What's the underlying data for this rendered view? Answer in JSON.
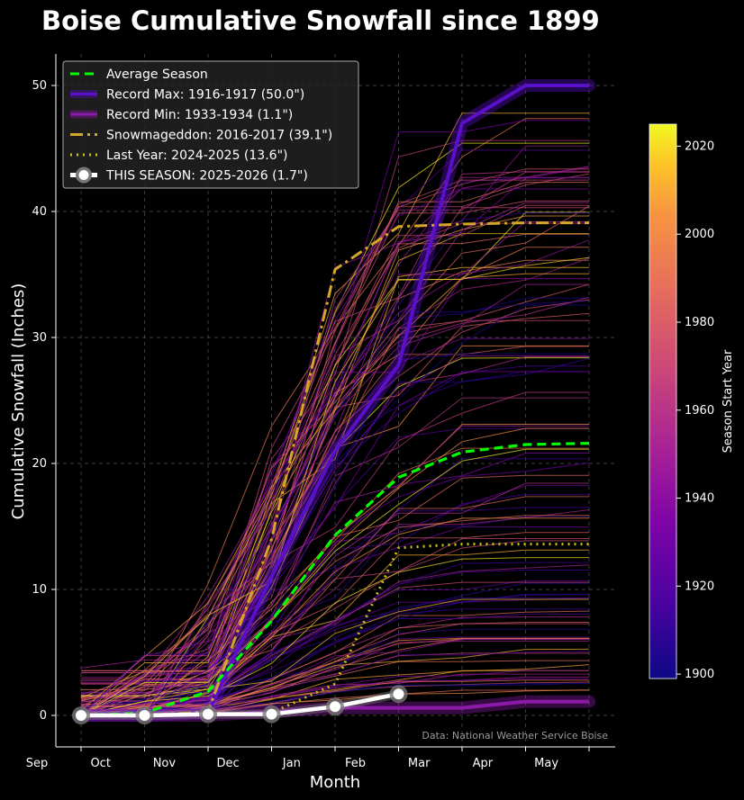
{
  "chart_data": {
    "type": "line",
    "title": "Boise Cumulative Snowfall since 1899",
    "xlabel": "Month",
    "ylabel": "Cumulative Snowfall (Inches)",
    "x_tick_labels": [
      "Sep",
      "Oct",
      "Nov",
      "Dec",
      "Jan",
      "Feb",
      "Mar",
      "Apr",
      "May"
    ],
    "y_ticks": [
      0,
      10,
      20,
      30,
      40,
      50
    ],
    "ylim": [
      -2.5,
      52.5
    ],
    "grid": true,
    "legend_position": "top-left",
    "source_note": "Data: National Weather Service Boise",
    "colorbar": {
      "label": "Season Start Year",
      "ticks": [
        1900,
        1920,
        1940,
        1960,
        1980,
        2000,
        2020
      ],
      "range": [
        1899,
        2025
      ],
      "colormap": "plasma"
    },
    "points_x": [
      "Oct 1",
      "Nov 1",
      "Dec 1",
      "Jan 1",
      "Feb 1",
      "Mar 1",
      "Apr 1",
      "May 1",
      "Jun 1"
    ],
    "series": [
      {
        "name": "Average Season",
        "color": "#00ff00",
        "style": "dashed",
        "values": [
          0.0,
          0.2,
          1.9,
          7.5,
          14.3,
          18.9,
          20.9,
          21.5,
          21.6
        ]
      },
      {
        "name": "Record Max: 1916-1917 (50.0\")",
        "color": "#5a10c8",
        "style": "solid-thick",
        "values": [
          0.0,
          0.0,
          0.2,
          11.0,
          21.0,
          27.8,
          47.0,
          50.0,
          50.0
        ]
      },
      {
        "name": "Record Min: 1933-1934 (1.1\")",
        "color": "#8b1aa8",
        "style": "solid-thick",
        "values": [
          0.0,
          0.0,
          0.0,
          0.3,
          0.6,
          0.6,
          0.6,
          1.1,
          1.1
        ]
      },
      {
        "name": "Snowmageddon: 2016-2017 (39.1\")",
        "color": "#d4a62a",
        "style": "dash-dot",
        "values": [
          0.0,
          0.0,
          0.3,
          14.0,
          35.4,
          38.8,
          39.0,
          39.1,
          39.1
        ]
      },
      {
        "name": "Last Year: 2024-2025 (13.6\")",
        "color": "#c9c317",
        "style": "dotted",
        "values": [
          0.0,
          0.0,
          0.0,
          0.2,
          2.5,
          13.3,
          13.6,
          13.6,
          13.6
        ]
      },
      {
        "name": "THIS SEASON: 2025-2026 (1.7\")",
        "color": "#ffffff",
        "style": "solid-markers",
        "values": [
          0.0,
          0.0,
          0.1,
          0.1,
          0.7,
          1.7
        ]
      }
    ]
  }
}
